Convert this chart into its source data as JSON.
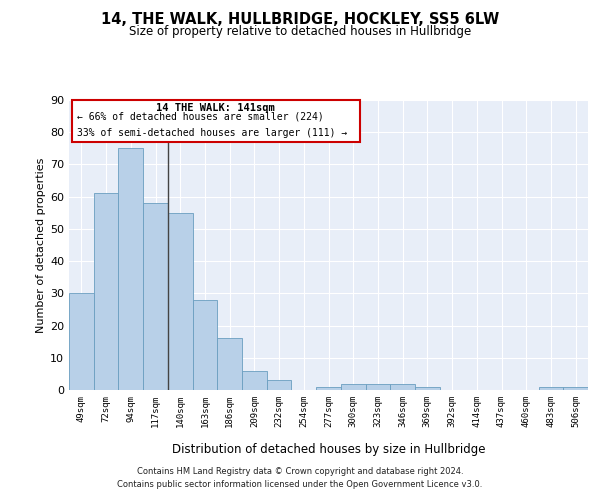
{
  "title": "14, THE WALK, HULLBRIDGE, HOCKLEY, SS5 6LW",
  "subtitle": "Size of property relative to detached houses in Hullbridge",
  "xlabel": "Distribution of detached houses by size in Hullbridge",
  "ylabel": "Number of detached properties",
  "bar_color": "#b8d0e8",
  "bar_edge_color": "#6a9ec0",
  "vline_color": "#444444",
  "vline_x": 3.5,
  "categories": [
    "49sqm",
    "72sqm",
    "94sqm",
    "117sqm",
    "140sqm",
    "163sqm",
    "186sqm",
    "209sqm",
    "232sqm",
    "254sqm",
    "277sqm",
    "300sqm",
    "323sqm",
    "346sqm",
    "369sqm",
    "392sqm",
    "414sqm",
    "437sqm",
    "460sqm",
    "483sqm",
    "506sqm"
  ],
  "values": [
    30,
    61,
    75,
    58,
    55,
    28,
    16,
    6,
    3,
    0,
    1,
    2,
    2,
    2,
    1,
    0,
    0,
    0,
    0,
    1,
    1
  ],
  "ylim": [
    0,
    90
  ],
  "yticks": [
    0,
    10,
    20,
    30,
    40,
    50,
    60,
    70,
    80,
    90
  ],
  "annotation_title": "14 THE WALK: 141sqm",
  "annotation_line1": "← 66% of detached houses are smaller (224)",
  "annotation_line2": "33% of semi-detached houses are larger (111) →",
  "annotation_box_color": "#ffffff",
  "annotation_box_edge": "#cc0000",
  "footer1": "Contains HM Land Registry data © Crown copyright and database right 2024.",
  "footer2": "Contains public sector information licensed under the Open Government Licence v3.0.",
  "background_color": "#e8eef8",
  "grid_color": "#ffffff",
  "fig_bg_color": "#ffffff"
}
